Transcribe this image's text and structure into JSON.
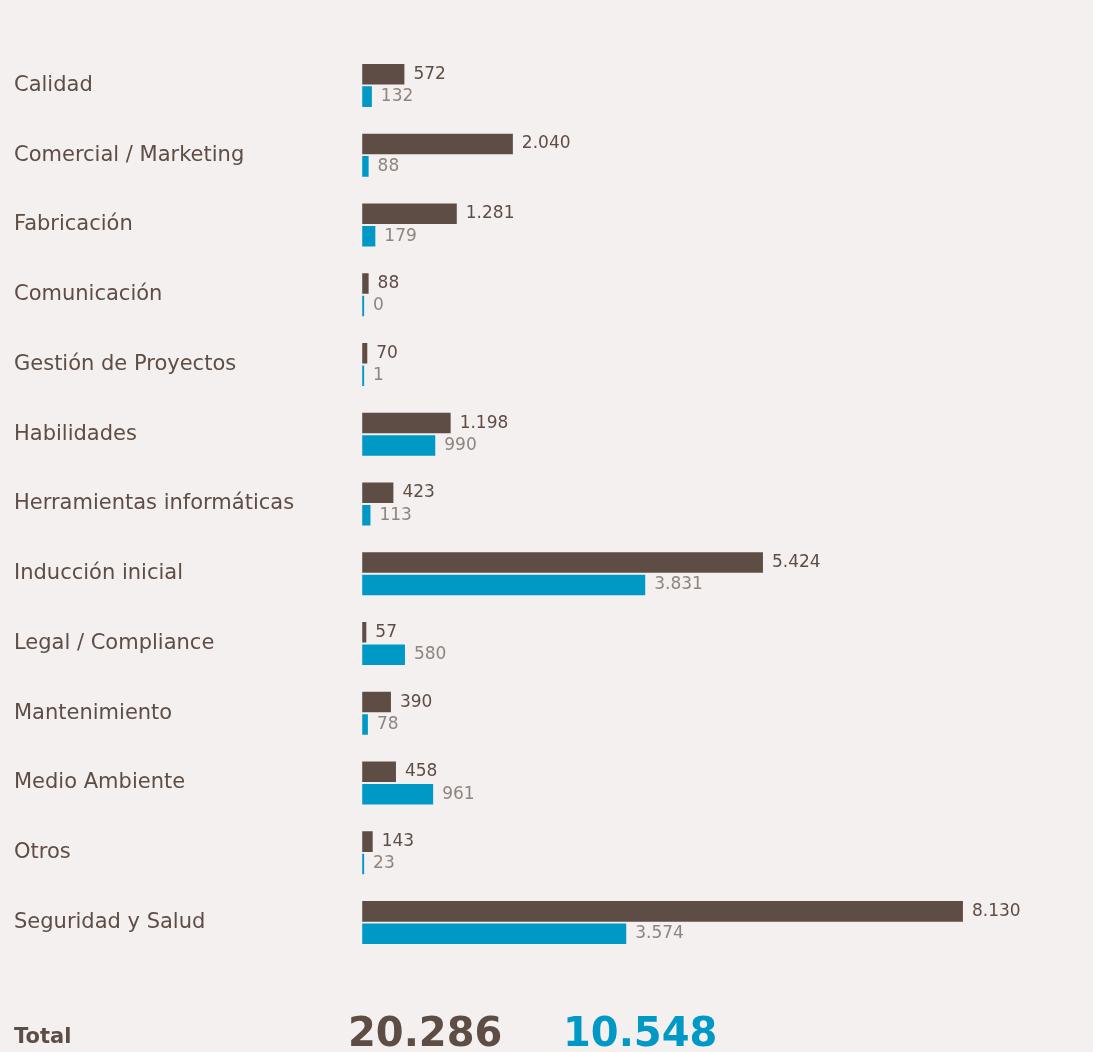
{
  "chart_data": {
    "type": "bar",
    "orientation": "horizontal",
    "categories": [
      "Calidad",
      "Comercial / Marketing",
      "Fabricación",
      "Comunicación",
      "Gestión de Proyectos",
      "Habilidades",
      "Herramientas informáticas",
      "Inducción inicial",
      "Legal / Compliance",
      "Mantenimiento",
      "Medio Ambiente",
      "Otros",
      "Seguridad y Salud"
    ],
    "series": [
      {
        "color": "#5e4d45",
        "values": [
          572,
          2040,
          1281,
          88,
          70,
          1198,
          423,
          5424,
          57,
          390,
          458,
          143,
          8130
        ],
        "value_labels": [
          "572",
          "2.040",
          "1.281",
          "88",
          "70",
          "1.198",
          "423",
          "5.424",
          "57",
          "390",
          "458",
          "143",
          "8.130"
        ]
      },
      {
        "color": "#0099c6",
        "values": [
          132,
          88,
          179,
          0,
          1,
          990,
          113,
          3831,
          580,
          78,
          961,
          23,
          3574
        ],
        "value_labels": [
          "132",
          "88",
          "179",
          "0",
          "1",
          "990",
          "113",
          "3.831",
          "580",
          "78",
          "961",
          "23",
          "3.574"
        ]
      }
    ],
    "annotations": [
      "Total",
      "20.286",
      "10.548"
    ]
  }
}
